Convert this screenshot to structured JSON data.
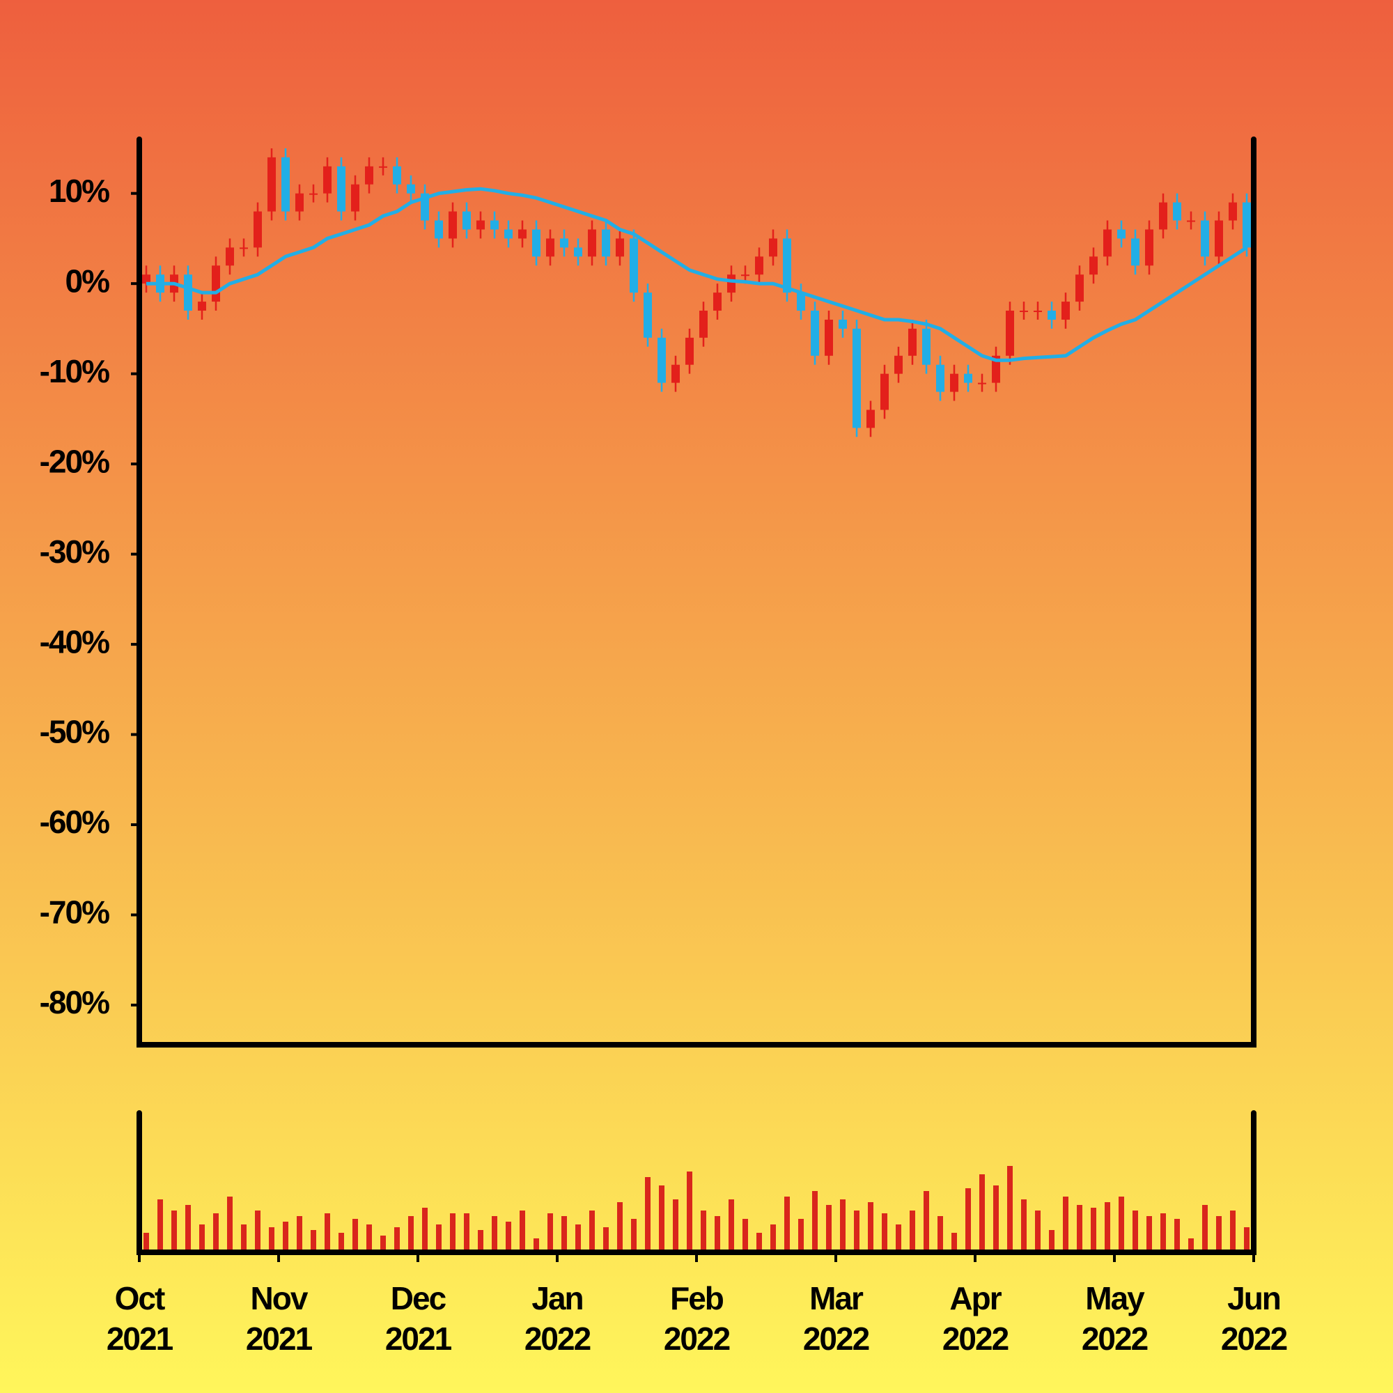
{
  "chart_data": {
    "type": "candlestick",
    "open": [
      0,
      1,
      -1,
      1,
      -3,
      -2,
      2,
      4,
      4,
      8,
      14,
      8,
      10,
      10,
      13,
      8,
      11,
      13,
      13,
      11,
      10,
      7,
      5,
      8,
      6,
      7,
      6,
      5,
      6,
      3,
      5,
      4,
      3,
      6,
      3,
      5,
      -1,
      -6,
      -11,
      -9,
      -6,
      -3,
      -1,
      1,
      1,
      3,
      5,
      -1,
      -3,
      -8,
      -4,
      -5,
      -16,
      -14,
      -10,
      -8,
      -5,
      -9,
      -12,
      -10,
      -11,
      -11,
      -8,
      -3,
      -3,
      -3,
      -4,
      -2,
      1,
      3,
      6,
      5,
      2,
      6,
      9,
      7,
      7,
      3,
      7,
      9
    ],
    "high": [
      2,
      2,
      2,
      2,
      -1,
      3,
      5,
      5,
      9,
      15,
      15,
      11,
      11,
      14,
      14,
      12,
      14,
      14,
      14,
      12,
      11,
      8,
      9,
      9,
      8,
      8,
      7,
      7,
      7,
      6,
      6,
      5,
      7,
      7,
      6,
      6,
      0,
      -5,
      -8,
      -5,
      -2,
      0,
      2,
      2,
      4,
      6,
      6,
      0,
      -2,
      -3,
      -3,
      -4,
      -13,
      -9,
      -7,
      -4,
      -4,
      -8,
      -9,
      -9,
      -10,
      -7,
      -2,
      -2,
      -2,
      -2,
      -1,
      2,
      4,
      7,
      7,
      6,
      7,
      10,
      10,
      8,
      8,
      8,
      10,
      10
    ],
    "low": [
      -1,
      -2,
      -2,
      -4,
      -4,
      -3,
      1,
      3,
      3,
      7,
      7,
      7,
      9,
      9,
      7,
      7,
      10,
      12,
      10,
      9,
      6,
      4,
      4,
      5,
      5,
      5,
      4,
      4,
      2,
      2,
      3,
      2,
      2,
      2,
      2,
      -2,
      -7,
      -12,
      -12,
      -10,
      -7,
      -4,
      -2,
      0,
      0,
      2,
      -2,
      -4,
      -9,
      -9,
      -6,
      -17,
      -17,
      -15,
      -11,
      -9,
      -10,
      -13,
      -13,
      -12,
      -12,
      -12,
      -9,
      -4,
      -4,
      -5,
      -5,
      -3,
      0,
      2,
      4,
      1,
      1,
      5,
      6,
      6,
      2,
      2,
      6,
      3
    ],
    "close": [
      1,
      -1,
      1,
      -3,
      -2,
      2,
      4,
      4,
      8,
      14,
      8,
      10,
      10,
      13,
      8,
      11,
      13,
      13,
      11,
      10,
      7,
      5,
      8,
      6,
      7,
      6,
      5,
      6,
      3,
      5,
      4,
      3,
      6,
      3,
      5,
      -1,
      -6,
      -11,
      -9,
      -6,
      -3,
      -1,
      1,
      1,
      3,
      5,
      -1,
      -3,
      -8,
      -4,
      -5,
      -16,
      -14,
      -10,
      -8,
      -5,
      -9,
      -12,
      -10,
      -11,
      -11,
      -8,
      -3,
      -3,
      -3,
      -4,
      -2,
      1,
      3,
      6,
      5,
      2,
      6,
      9,
      7,
      7,
      3,
      7,
      9,
      4
    ],
    "up_color": "#e3201b",
    "down_color": "#22aee6",
    "ma": {
      "color": "#22aee6",
      "values": [
        0,
        0,
        0,
        -0.5,
        -1,
        -1,
        0,
        0.5,
        1,
        2,
        3,
        3.5,
        4,
        5,
        5.5,
        6,
        6.5,
        7.5,
        8,
        9,
        9.5,
        10,
        10.2,
        10.4,
        10.5,
        10.3,
        10,
        9.8,
        9.5,
        9,
        8.5,
        8,
        7.5,
        7,
        6,
        5.5,
        4.5,
        3.5,
        2.5,
        1.5,
        1,
        0.5,
        0.3,
        0.2,
        0,
        0,
        -0.5,
        -1,
        -1.5,
        -2,
        -2.5,
        -3,
        -3.5,
        -4,
        -4,
        -4.2,
        -4.5,
        -5,
        -6,
        -7,
        -8,
        -8.5,
        -8.5,
        -8.3,
        -8.2,
        -8.1,
        -8,
        -7,
        -6,
        -5.2,
        -4.5,
        -4,
        -3,
        -2,
        -1,
        0,
        1,
        2,
        3,
        4
      ]
    },
    "volume": {
      "color": "#d9261c",
      "ylim": [
        0,
        100
      ],
      "values": [
        14,
        38,
        30,
        34,
        20,
        28,
        40,
        20,
        30,
        18,
        22,
        26,
        16,
        28,
        14,
        24,
        20,
        12,
        18,
        26,
        32,
        20,
        28,
        28,
        16,
        26,
        22,
        30,
        10,
        28,
        26,
        20,
        30,
        18,
        36,
        24,
        54,
        48,
        38,
        58,
        30,
        26,
        38,
        24,
        14,
        20,
        40,
        24,
        44,
        34,
        38,
        30,
        36,
        28,
        20,
        30,
        44,
        26,
        14,
        46,
        56,
        48,
        62,
        38,
        30,
        16,
        40,
        34,
        32,
        36,
        40,
        30,
        26,
        28,
        24,
        10,
        34,
        26,
        30,
        18
      ]
    },
    "xlim": [
      0,
      80
    ],
    "xticks": [
      {
        "value": 0,
        "label": [
          "Oct",
          "2021"
        ]
      },
      {
        "value": 10,
        "label": [
          "Nov",
          "2021"
        ]
      },
      {
        "value": 20,
        "label": [
          "Dec",
          "2021"
        ]
      },
      {
        "value": 30,
        "label": [
          "Jan",
          "2022"
        ]
      },
      {
        "value": 40,
        "label": [
          "Feb",
          "2022"
        ]
      },
      {
        "value": 50,
        "label": [
          "Mar",
          "2022"
        ]
      },
      {
        "value": 60,
        "label": [
          "Apr",
          "2022"
        ]
      },
      {
        "value": 70,
        "label": [
          "May",
          "2022"
        ]
      },
      {
        "value": 80,
        "label": [
          "Jun",
          "2022"
        ]
      }
    ],
    "ylim": [
      -84.4,
      16
    ],
    "yticks": [
      {
        "value": 10,
        "label": "10%"
      },
      {
        "value": 0,
        "label": "0%"
      },
      {
        "value": -10,
        "label": "-10%"
      },
      {
        "value": -20,
        "label": "-20%"
      },
      {
        "value": -30,
        "label": "-30%"
      },
      {
        "value": -40,
        "label": "-40%"
      },
      {
        "value": -50,
        "label": "-50%"
      },
      {
        "value": -60,
        "label": "-60%"
      },
      {
        "value": -70,
        "label": "-70%"
      },
      {
        "value": -80,
        "label": "-80%"
      }
    ]
  }
}
